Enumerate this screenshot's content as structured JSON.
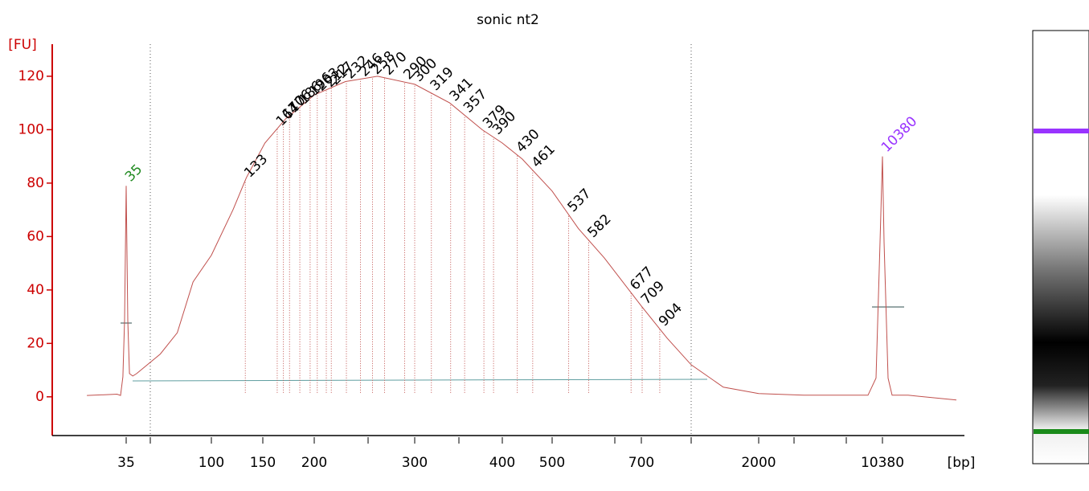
{
  "chart_data": {
    "type": "line",
    "title": "sonic nt2",
    "ylabel": "[FU]",
    "xlabel": "[bp]",
    "axis_color": "#cc0000",
    "ylim": [
      -14.5,
      132
    ],
    "yticks": [
      0,
      20,
      40,
      60,
      80,
      100,
      120
    ],
    "xticks": [
      35,
      null,
      100,
      150,
      200,
      null,
      300,
      null,
      400,
      500,
      null,
      700,
      null,
      2000,
      null,
      null,
      10380
    ],
    "series": [
      {
        "name": "sonic nt2",
        "color": "#c0504d",
        "x": [
          5,
          20,
          28,
          30.7,
          32.5,
          33.8,
          35,
          36.2,
          37.5,
          40,
          43,
          61,
          74,
          86,
          100,
          121,
          134,
          152,
          172,
          200,
          231,
          263,
          300,
          340,
          377,
          400,
          440,
          500,
          559,
          617,
          700,
          985,
          1252,
          1608,
          2000,
          5047,
          9400,
          9945,
          10217,
          10380,
          10489,
          10761,
          11033,
          12121,
          15385
        ],
        "values": [
          0.5,
          0.8,
          1,
          0.5,
          7.5,
          28.6,
          79,
          28.6,
          8.7,
          7.8,
          8.7,
          16,
          24,
          43,
          53,
          70,
          82,
          95,
          104,
          113,
          118,
          120,
          117,
          110,
          100,
          95,
          89,
          77,
          63,
          52,
          34,
          22,
          12,
          3.6,
          1.2,
          0.6,
          0.6,
          7,
          58,
          90,
          58,
          7,
          0.6,
          0.6,
          -1.2
        ]
      }
    ],
    "peaks": [
      133,
      164,
      170,
      176,
      186,
      196,
      203,
      212,
      217,
      232,
      246,
      258,
      270,
      290,
      300,
      319,
      341,
      357,
      379,
      390,
      430,
      461,
      537,
      582,
      677,
      709,
      904
    ],
    "peak_color": "#000000",
    "lower_marker": 35,
    "lower_marker_color": "#228b22",
    "upper_marker": 10380,
    "upper_marker_color": "#9933ff"
  }
}
